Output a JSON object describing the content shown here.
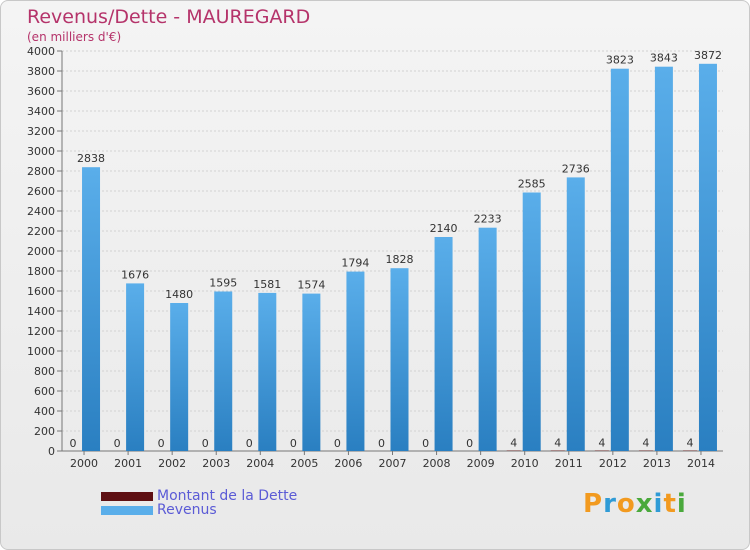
{
  "colors": {
    "dette": "#5e0f12",
    "revenus_light": "#5aaeea",
    "revenus_dark": "#2a7fc1",
    "title": "#b5336a",
    "legend_text": "#5b5bd6"
  },
  "chart_data": {
    "type": "bar",
    "title": "Revenus/Dette - MAUREGARD",
    "subtitle": "(en milliers d'€)",
    "categories": [
      "2000",
      "2001",
      "2002",
      "2003",
      "2004",
      "2005",
      "2006",
      "2007",
      "2008",
      "2009",
      "2010",
      "2011",
      "2012",
      "2013",
      "2014"
    ],
    "series": [
      {
        "name": "Montant de la Dette",
        "values": [
          0,
          0,
          0,
          0,
          0,
          0,
          0,
          0,
          0,
          0,
          4,
          4,
          4,
          4,
          4
        ]
      },
      {
        "name": "Revenus",
        "values": [
          2838,
          1676,
          1480,
          1595,
          1581,
          1574,
          1794,
          1828,
          2140,
          2233,
          2585,
          2736,
          3823,
          3843,
          3872
        ]
      }
    ],
    "ylim": [
      0,
      4000
    ],
    "ytick_step": 200,
    "grid": true,
    "legend": "bottom-left"
  },
  "logo": {
    "letters": [
      "P",
      "r",
      "o",
      "x",
      "i",
      "t",
      "i"
    ],
    "colors": [
      "#f29a1f",
      "#2f9bd6",
      "#f29a1f",
      "#4aa93c",
      "#2f9bd6",
      "#f29a1f",
      "#4aa93c"
    ]
  }
}
